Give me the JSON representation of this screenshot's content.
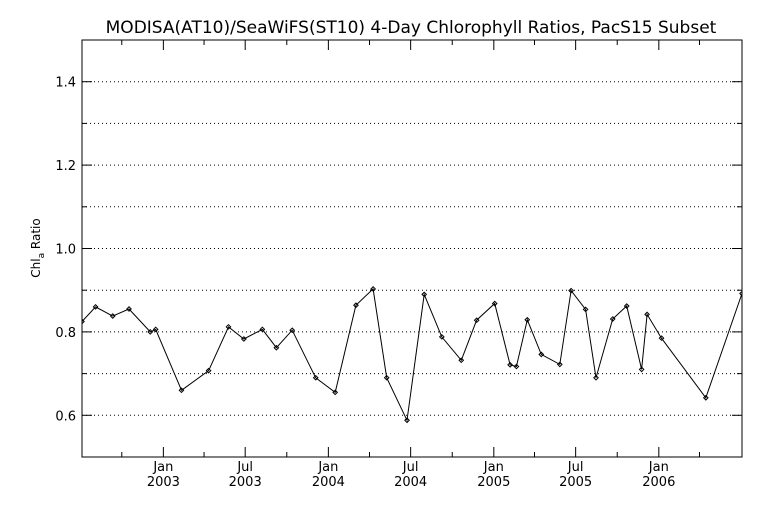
{
  "chart_data": {
    "type": "line",
    "title": "MODISA(AT10)/SeaWiFS(ST10) 4-Day Chlorophyll Ratios, PacS15 Subset",
    "ylabel_main": "Chl",
    "ylabel_sub": "a",
    "ylabel_rest": " Ratio",
    "xlabel": "",
    "ylim": [
      0.5,
      1.5
    ],
    "xlim": [
      "2002-07-05",
      "2006-07-04"
    ],
    "grid": "horizontal dotted",
    "y_ticks": [
      {
        "value": 0.6,
        "label": "0.6"
      },
      {
        "value": 0.8,
        "label": "0.8"
      },
      {
        "value": 1.0,
        "label": "1.0"
      },
      {
        "value": 1.2,
        "label": "1.2"
      },
      {
        "value": 1.4,
        "label": "1.4"
      }
    ],
    "y_gridlines": [
      0.6,
      0.7,
      0.8,
      0.9,
      1.0,
      1.1,
      1.2,
      1.3,
      1.4
    ],
    "y_minor_ticks": [
      0.7,
      0.9,
      1.1,
      1.3
    ],
    "x_ticks": [
      {
        "date": "2003-01-01",
        "line1": "Jan",
        "line2": "2003"
      },
      {
        "date": "2003-07-01",
        "line1": "Jul",
        "line2": "2003"
      },
      {
        "date": "2004-01-01",
        "line1": "Jan",
        "line2": "2004"
      },
      {
        "date": "2004-07-01",
        "line1": "Jul",
        "line2": "2004"
      },
      {
        "date": "2005-01-01",
        "line1": "Jan",
        "line2": "2005"
      },
      {
        "date": "2005-07-01",
        "line1": "Jul",
        "line2": "2005"
      },
      {
        "date": "2006-01-01",
        "line1": "Jan",
        "line2": "2006"
      }
    ],
    "x_minor_ticks": [
      "2002-10-01",
      "2003-04-01",
      "2003-10-01",
      "2004-04-01",
      "2004-10-01",
      "2005-04-01",
      "2005-10-01",
      "2006-04-01"
    ],
    "series": [
      {
        "color": "#000000",
        "x": [
          "2002-07-05",
          "2002-08-04",
          "2002-09-11",
          "2002-10-17",
          "2002-12-03",
          "2002-12-15",
          "2003-02-10",
          "2003-04-11",
          "2003-05-25",
          "2003-06-28",
          "2003-08-08",
          "2003-09-08",
          "2003-10-13",
          "2003-12-04",
          "2004-01-16",
          "2004-03-02",
          "2004-04-09",
          "2004-05-09",
          "2004-06-23",
          "2004-07-31",
          "2004-09-08",
          "2004-10-21",
          "2004-11-24",
          "2005-01-03",
          "2005-02-06",
          "2005-02-20",
          "2005-03-16",
          "2005-04-16",
          "2005-05-27",
          "2005-06-21",
          "2005-07-23",
          "2005-08-15",
          "2005-09-21",
          "2005-10-22",
          "2005-11-24",
          "2005-12-06",
          "2006-01-07",
          "2006-04-15",
          "2006-07-04"
        ],
        "y": [
          0.825,
          0.86,
          0.838,
          0.855,
          0.8,
          0.806,
          0.66,
          0.707,
          0.812,
          0.783,
          0.806,
          0.762,
          0.804,
          0.69,
          0.655,
          0.864,
          0.903,
          0.69,
          0.588,
          0.89,
          0.788,
          0.732,
          0.828,
          0.868,
          0.721,
          0.717,
          0.829,
          0.746,
          0.722,
          0.899,
          0.854,
          0.69,
          0.831,
          0.862,
          0.71,
          0.842,
          0.785,
          0.642,
          0.892
        ]
      }
    ]
  }
}
